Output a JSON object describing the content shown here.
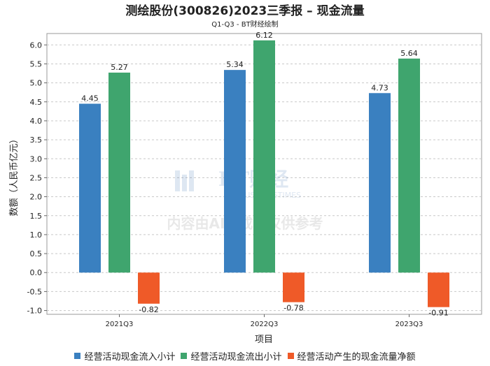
{
  "chart_data": {
    "type": "bar",
    "title": "测绘股份(300826)2023三季报 – 现金流量",
    "subtitle": "Q1-Q3 - BT财经绘制",
    "xlabel": "项目",
    "ylabel": "数额（人民币亿元）",
    "categories": [
      "2021Q3",
      "2022Q3",
      "2023Q3"
    ],
    "ylim": [
      -1.1,
      6.3
    ],
    "yticks": [
      -1.0,
      -0.5,
      0.0,
      0.5,
      1.0,
      1.5,
      2.0,
      2.5,
      3.0,
      3.5,
      4.0,
      4.5,
      5.0,
      5.5,
      6.0
    ],
    "grid": true,
    "legend_position": "bottom",
    "series": [
      {
        "name": "经营活动现金流入小计",
        "color": "#3a80c0",
        "values": [
          4.45,
          5.34,
          4.73
        ]
      },
      {
        "name": "经营活动现金流出小计",
        "color": "#3fa56e",
        "values": [
          5.27,
          6.12,
          5.64
        ]
      },
      {
        "name": "经营活动产生的现金流量净额",
        "color": "#ef5a28",
        "values": [
          -0.82,
          -0.78,
          -0.91
        ]
      }
    ]
  },
  "watermark": {
    "logo_text": "BT财经",
    "logo_sub": "BUSINESSTIMES",
    "disclaimer": "内容由AI生成，仅供参考"
  }
}
